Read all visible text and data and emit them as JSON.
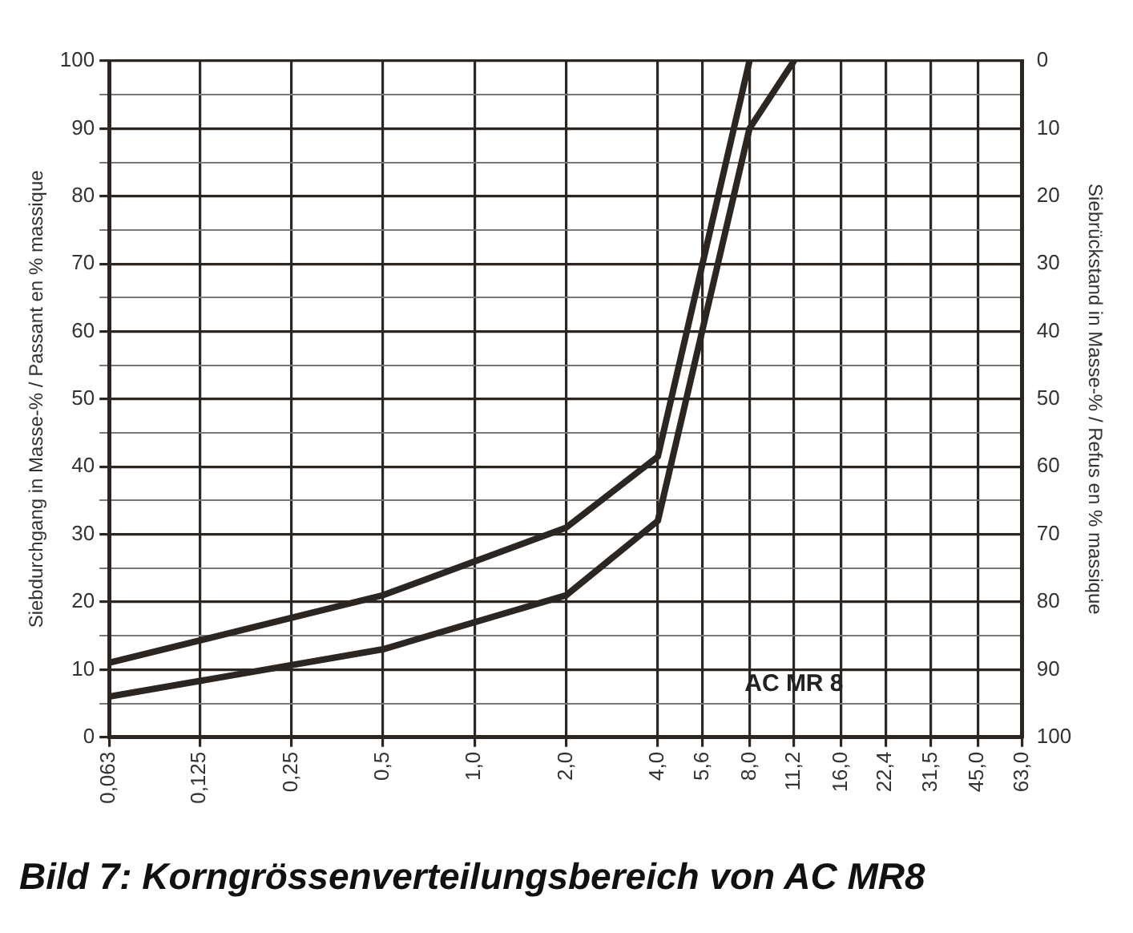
{
  "chart_data": {
    "type": "line",
    "title": "Bild 7: Korngrössenverteilungsbereich von AC MR8",
    "ylabel": "Siebdurchgang in Masse-% / Passant en % massique",
    "y2label": "Siebrückstand in Masse-% / Refus en % massique",
    "annotations": [
      "AC MR 8"
    ],
    "log": "x",
    "grid": true,
    "legend": false,
    "marker": "none",
    "line_style": "solid",
    "xlim": [
      0.063,
      63
    ],
    "xticks": [
      {
        "value": 0.063,
        "label": "0,063"
      },
      {
        "value": 0.125,
        "label": "0,125"
      },
      {
        "value": 0.25,
        "label": "0,25"
      },
      {
        "value": 0.5,
        "label": "0,5"
      },
      {
        "value": 1,
        "label": "1,0"
      },
      {
        "value": 2,
        "label": "2,0"
      },
      {
        "value": 4,
        "label": "4,0"
      },
      {
        "value": 5.6,
        "label": "5,6"
      },
      {
        "value": 8,
        "label": "8,0"
      },
      {
        "value": 11.2,
        "label": "11,2"
      },
      {
        "value": 16,
        "label": "16,0"
      },
      {
        "value": 22.4,
        "label": "22,4"
      },
      {
        "value": 31.5,
        "label": "31,5"
      },
      {
        "value": 45,
        "label": "45,0"
      },
      {
        "value": 63,
        "label": "63,0"
      }
    ],
    "ylim": [
      0,
      100
    ],
    "yticks": [
      0,
      {
        "value": 5,
        "label": null
      },
      10,
      {
        "value": 15,
        "label": null
      },
      20,
      {
        "value": 25,
        "label": null
      },
      30,
      {
        "value": 35,
        "label": null
      },
      40,
      {
        "value": 45,
        "label": null
      },
      50,
      {
        "value": 55,
        "label": null
      },
      60,
      {
        "value": 65,
        "label": null
      },
      70,
      {
        "value": 75,
        "label": null
      },
      80,
      {
        "value": 85,
        "label": null
      },
      90,
      {
        "value": 95,
        "label": null
      },
      100
    ],
    "y2lim": [
      100,
      0
    ],
    "y2ticks": [
      0,
      10,
      20,
      30,
      40,
      50,
      60,
      70,
      80,
      90,
      100
    ],
    "series": [
      {
        "color": "#2b2622",
        "x": [
          0.063,
          0.5,
          2,
          4,
          8
        ],
        "values": [
          11,
          21,
          31,
          41.5,
          100
        ]
      },
      {
        "color": "#2b2622",
        "x": [
          0.063,
          0.5,
          2,
          4,
          8,
          11.2
        ],
        "values": [
          6,
          13,
          21,
          32,
          90,
          100
        ]
      }
    ]
  }
}
